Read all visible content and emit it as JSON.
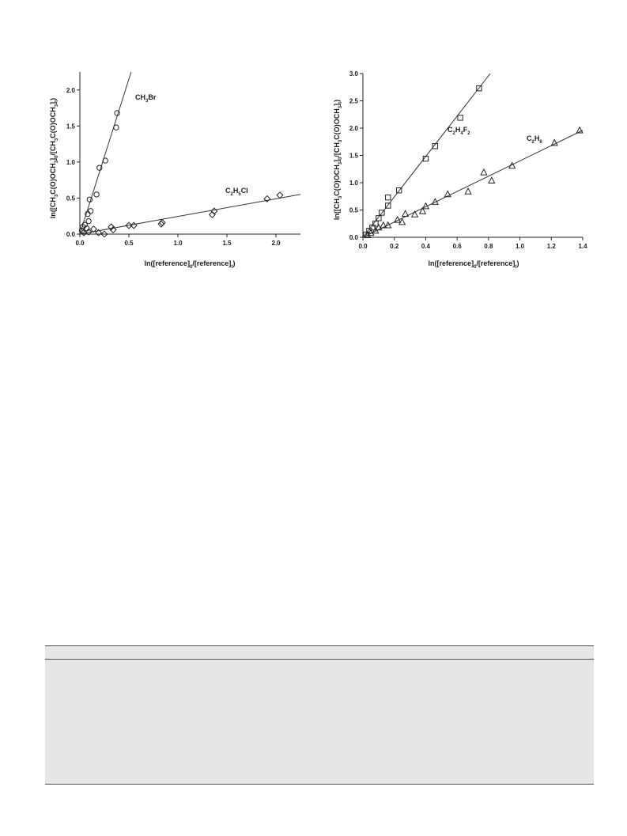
{
  "chart_data": [
    {
      "type": "scatter",
      "xlabel": "ln([reference]0/[reference]t)",
      "ylabel": "ln([CH3C(O)OCH3]0/[CH3C(O)OCH3]t)",
      "xlim": [
        0,
        2.25
      ],
      "ylim": [
        0,
        2.25
      ],
      "x_ticks": [
        "0.0",
        "0.5",
        "1.0",
        "1.5",
        "2.0"
      ],
      "y_ticks": [
        "0.0",
        "0.5",
        "1.0",
        "1.5",
        "2.0"
      ],
      "series": [
        {
          "name": "CH3Br",
          "marker": "circle",
          "points": [
            {
              "x": 0.02,
              "y": 0.05
            },
            {
              "x": 0.03,
              "y": 0.1
            },
            {
              "x": 0.05,
              "y": 0.13
            },
            {
              "x": 0.07,
              "y": 0.08
            },
            {
              "x": 0.08,
              "y": 0.28
            },
            {
              "x": 0.09,
              "y": 0.18
            },
            {
              "x": 0.1,
              "y": 0.48
            },
            {
              "x": 0.11,
              "y": 0.32
            },
            {
              "x": 0.17,
              "y": 0.55
            },
            {
              "x": 0.2,
              "y": 0.92
            },
            {
              "x": 0.26,
              "y": 1.02
            },
            {
              "x": 0.37,
              "y": 1.48
            },
            {
              "x": 0.38,
              "y": 1.68
            }
          ],
          "fit": {
            "slope": 4.3,
            "intercept": 0.0
          }
        },
        {
          "name": "C2H5Cl",
          "marker": "diamond",
          "points": [
            {
              "x": 0.04,
              "y": 0.02
            },
            {
              "x": 0.09,
              "y": 0.03
            },
            {
              "x": 0.14,
              "y": 0.07
            },
            {
              "x": 0.19,
              "y": 0.02
            },
            {
              "x": 0.25,
              "y": 0.0
            },
            {
              "x": 0.32,
              "y": 0.1
            },
            {
              "x": 0.34,
              "y": 0.06
            },
            {
              "x": 0.5,
              "y": 0.12
            },
            {
              "x": 0.55,
              "y": 0.12
            },
            {
              "x": 0.83,
              "y": 0.14
            },
            {
              "x": 0.84,
              "y": 0.16
            },
            {
              "x": 1.35,
              "y": 0.27
            },
            {
              "x": 1.37,
              "y": 0.32
            },
            {
              "x": 1.91,
              "y": 0.49
            },
            {
              "x": 2.04,
              "y": 0.54
            }
          ],
          "fit": {
            "slope": 0.245,
            "intercept": 0.0
          }
        }
      ]
    },
    {
      "type": "scatter",
      "xlabel": "ln([reference]0/[reference]t)",
      "ylabel": "ln([CH3C(O)OCH3]0/[CH3C(O)OCH3]t)",
      "xlim": [
        0,
        1.4
      ],
      "ylim": [
        0,
        3.0
      ],
      "x_ticks": [
        "0.0",
        "0.2",
        "0.4",
        "0.6",
        "0.8",
        "1.0",
        "1.2",
        "1.4"
      ],
      "y_ticks": [
        "0.0",
        "0.5",
        "1.0",
        "1.5",
        "2.0",
        "2.5",
        "3.0"
      ],
      "series": [
        {
          "name": "C2H4F2",
          "marker": "square",
          "points": [
            {
              "x": 0.02,
              "y": 0.05
            },
            {
              "x": 0.04,
              "y": 0.12
            },
            {
              "x": 0.06,
              "y": 0.18
            },
            {
              "x": 0.08,
              "y": 0.25
            },
            {
              "x": 0.1,
              "y": 0.35
            },
            {
              "x": 0.12,
              "y": 0.45
            },
            {
              "x": 0.16,
              "y": 0.58
            },
            {
              "x": 0.16,
              "y": 0.73
            },
            {
              "x": 0.23,
              "y": 0.86
            },
            {
              "x": 0.4,
              "y": 1.44
            },
            {
              "x": 0.46,
              "y": 1.67
            },
            {
              "x": 0.62,
              "y": 2.19
            },
            {
              "x": 0.74,
              "y": 2.73
            }
          ],
          "fit": {
            "slope": 3.7,
            "intercept": 0.0
          }
        },
        {
          "name": "C2H6",
          "marker": "triangle",
          "points": [
            {
              "x": 0.03,
              "y": 0.04
            },
            {
              "x": 0.05,
              "y": 0.08
            },
            {
              "x": 0.08,
              "y": 0.12
            },
            {
              "x": 0.1,
              "y": 0.18
            },
            {
              "x": 0.13,
              "y": 0.22
            },
            {
              "x": 0.16,
              "y": 0.22
            },
            {
              "x": 0.22,
              "y": 0.32
            },
            {
              "x": 0.25,
              "y": 0.28
            },
            {
              "x": 0.27,
              "y": 0.43
            },
            {
              "x": 0.33,
              "y": 0.42
            },
            {
              "x": 0.38,
              "y": 0.48
            },
            {
              "x": 0.4,
              "y": 0.57
            },
            {
              "x": 0.46,
              "y": 0.65
            },
            {
              "x": 0.54,
              "y": 0.79
            },
            {
              "x": 0.67,
              "y": 0.84
            },
            {
              "x": 0.77,
              "y": 1.19
            },
            {
              "x": 0.82,
              "y": 1.04
            },
            {
              "x": 0.95,
              "y": 1.31
            },
            {
              "x": 1.22,
              "y": 1.73
            },
            {
              "x": 1.38,
              "y": 1.96
            }
          ],
          "fit": {
            "slope": 1.4,
            "intercept": 0.0
          }
        }
      ]
    }
  ],
  "label_parts": {
    "ch3br": {
      "a": "CH",
      "b": "3",
      "c": "Br"
    },
    "c2h5cl": {
      "a": "C",
      "b": "2",
      "c": "H",
      "d": "5",
      "e": "Cl"
    },
    "c2h4f2": {
      "a": "C",
      "b": "2",
      "c": "H",
      "d": "4",
      "e": "F",
      "f": "2"
    },
    "c2h6": {
      "a": "C",
      "b": "2",
      "c": "H",
      "d": "6"
    },
    "xlabel": {
      "a": "ln([reference]",
      "b": "0",
      "c": "/[reference]",
      "d": "t",
      "e": ")"
    },
    "ylabel": {
      "a": "ln([CH",
      "b": "3",
      "c": "C(O)OCH",
      "d": "3",
      "e": "]",
      "f": "0",
      "g": "/[CH",
      "h": "3",
      "i": "C(O)OCH",
      "j": "3",
      "k": "]",
      "l": "t",
      "m": ")"
    }
  },
  "colors": {
    "fit_line": "#333333",
    "marker": "#222222"
  }
}
